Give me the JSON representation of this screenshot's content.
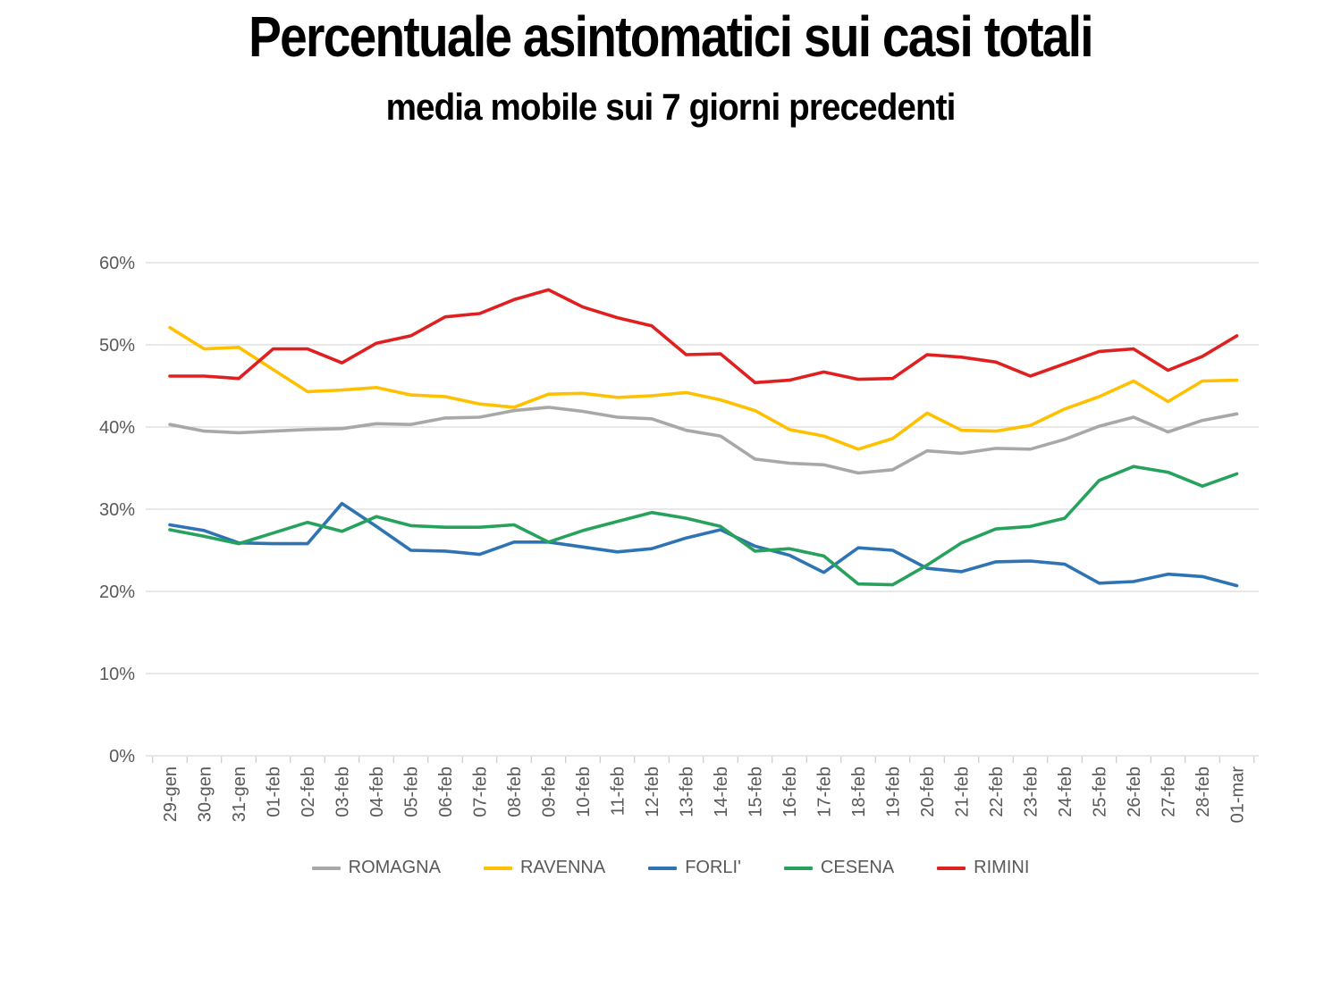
{
  "header": {
    "title": "Percentuale asintomatici sui casi totali",
    "subtitle": "media mobile sui 7 giorni precedenti"
  },
  "chart_data": {
    "type": "line",
    "title": "Percentuale asintomatici sui casi totali",
    "subtitle": "media mobile sui 7 giorni precedenti",
    "categories": [
      "29-gen",
      "30-gen",
      "31-gen",
      "01-feb",
      "02-feb",
      "03-feb",
      "04-feb",
      "05-feb",
      "06-feb",
      "07-feb",
      "08-feb",
      "09-feb",
      "10-feb",
      "11-feb",
      "12-feb",
      "13-feb",
      "14-feb",
      "15-feb",
      "16-feb",
      "17-feb",
      "18-feb",
      "19-feb",
      "20-feb",
      "21-feb",
      "22-feb",
      "23-feb",
      "24-feb",
      "25-feb",
      "26-feb",
      "27-feb",
      "28-feb",
      "01-mar"
    ],
    "series": [
      {
        "name": "ROMAGNA",
        "color": "#A8A8A8",
        "values": [
          40.3,
          39.5,
          39.3,
          39.5,
          39.7,
          39.8,
          40.4,
          40.3,
          41.1,
          41.2,
          42.0,
          42.4,
          41.9,
          41.2,
          41.0,
          39.6,
          38.9,
          36.1,
          35.6,
          35.4,
          34.4,
          34.8,
          37.1,
          36.8,
          37.4,
          37.3,
          38.5,
          40.1,
          41.2,
          39.4,
          40.8,
          41.6
        ]
      },
      {
        "name": "RAVENNA",
        "color": "#FFC000",
        "values": [
          52.1,
          49.5,
          49.7,
          47.0,
          44.3,
          44.5,
          44.8,
          43.9,
          43.7,
          42.8,
          42.4,
          44.0,
          44.1,
          43.6,
          43.8,
          44.2,
          43.3,
          42.0,
          39.7,
          38.9,
          37.3,
          38.6,
          41.7,
          39.6,
          39.5,
          40.2,
          42.2,
          43.7,
          45.6,
          43.1,
          45.6,
          45.7
        ]
      },
      {
        "name": "FORLI'",
        "color": "#2E74B5",
        "values": [
          28.1,
          27.4,
          25.9,
          25.8,
          25.8,
          30.7,
          27.9,
          25.0,
          24.9,
          24.5,
          26.0,
          26.0,
          25.4,
          24.8,
          25.2,
          26.5,
          27.5,
          25.5,
          24.4,
          22.3,
          25.3,
          25.0,
          22.8,
          22.4,
          23.6,
          23.7,
          23.3,
          21.0,
          21.2,
          22.1,
          21.8,
          20.7
        ]
      },
      {
        "name": "CESENA",
        "color": "#27A25D",
        "values": [
          27.5,
          26.7,
          25.8,
          27.1,
          28.4,
          27.3,
          29.1,
          28.0,
          27.8,
          27.8,
          28.1,
          26.0,
          27.4,
          28.5,
          29.6,
          28.9,
          27.9,
          24.9,
          25.2,
          24.3,
          20.9,
          20.8,
          23.2,
          25.9,
          27.6,
          27.9,
          28.9,
          33.5,
          35.2,
          34.5,
          32.8,
          34.3
        ]
      },
      {
        "name": "RIMINI",
        "color": "#E02020",
        "values": [
          46.2,
          46.2,
          45.9,
          49.5,
          49.5,
          47.8,
          50.2,
          51.1,
          53.4,
          53.8,
          55.5,
          56.7,
          54.6,
          53.3,
          52.3,
          48.8,
          48.9,
          45.4,
          45.7,
          46.7,
          45.8,
          45.9,
          48.8,
          48.5,
          47.9,
          46.2,
          47.7,
          49.2,
          49.5,
          46.9,
          48.6,
          51.1
        ]
      }
    ],
    "yticks": [
      0,
      10,
      20,
      30,
      40,
      50,
      60
    ],
    "ytick_suffix": "%",
    "ylim": [
      0,
      60
    ],
    "grid": true,
    "legend_position": "bottom",
    "colors": {
      "gridline": "#D9D9D9",
      "axis_line": "#D9D9D9",
      "tick_mark": "#BFBFBF",
      "axis_label": "#595959",
      "legend_label": "#595959"
    }
  }
}
